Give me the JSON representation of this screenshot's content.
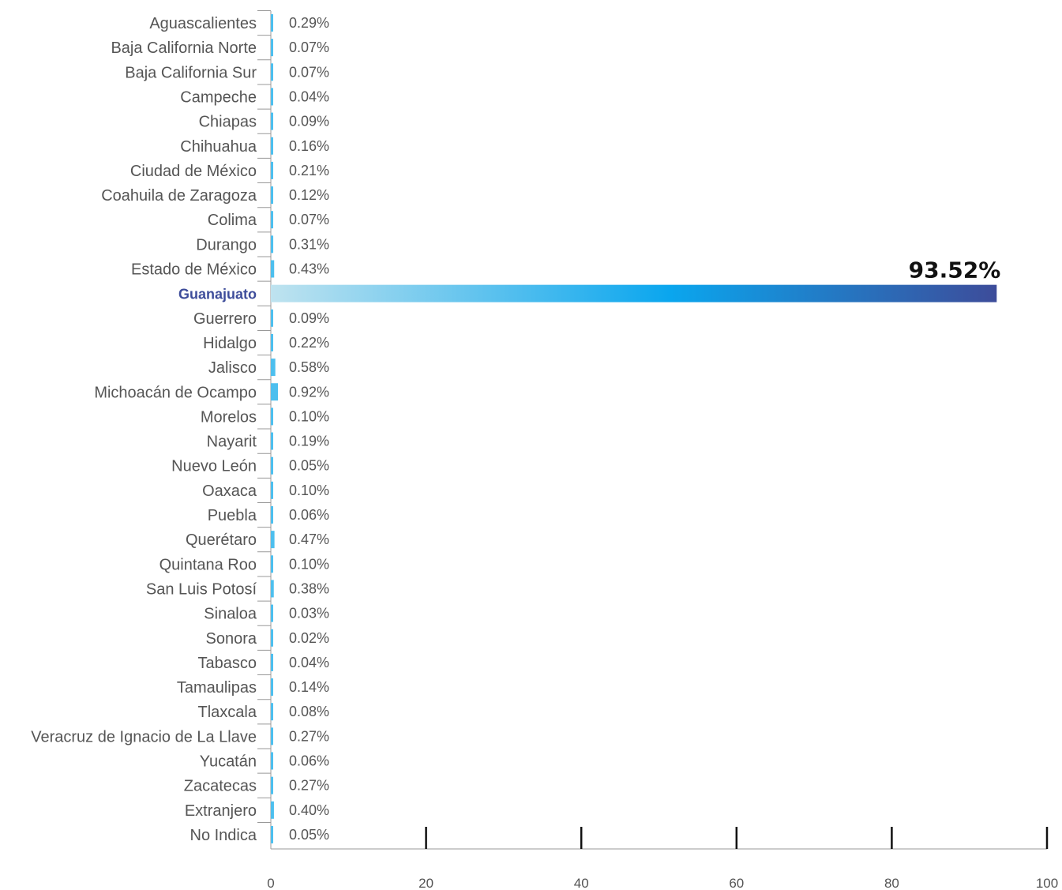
{
  "chart_data": {
    "type": "bar",
    "orientation": "horizontal",
    "title": "",
    "xlabel": "",
    "ylabel": "",
    "xlim": [
      0,
      100
    ],
    "x_ticks": [
      "0",
      "20",
      "40",
      "60",
      "80",
      "100"
    ],
    "grid": false,
    "categories": [
      "Aguascalientes",
      "Baja California Norte",
      "Baja California Sur",
      "Campeche",
      "Chiapas",
      "Chihuahua",
      "Ciudad de México",
      "Coahuila de Zaragoza",
      "Colima",
      "Durango",
      "Estado de México",
      "Guanajuato",
      "Guerrero",
      "Hidalgo",
      "Jalisco",
      "Michoacán de Ocampo",
      "Morelos",
      "Nayarit",
      "Nuevo León",
      "Oaxaca",
      "Puebla",
      "Querétaro",
      "Quintana Roo",
      "San Luis Potosí",
      "Sinaloa",
      "Sonora",
      "Tabasco",
      "Tamaulipas",
      "Tlaxcala",
      "Veracruz de Ignacio de La Llave",
      "Yucatán",
      "Zacatecas",
      "Extranjero",
      "No Indica"
    ],
    "values": [
      0.29,
      0.07,
      0.07,
      0.04,
      0.09,
      0.16,
      0.21,
      0.12,
      0.07,
      0.31,
      0.43,
      93.52,
      0.09,
      0.22,
      0.58,
      0.92,
      0.1,
      0.19,
      0.05,
      0.1,
      0.06,
      0.47,
      0.1,
      0.38,
      0.03,
      0.02,
      0.04,
      0.14,
      0.08,
      0.27,
      0.06,
      0.27,
      0.4,
      0.05
    ],
    "value_labels": [
      "0.29%",
      "0.07%",
      "0.07%",
      "0.04%",
      "0.09%",
      "0.16%",
      "0.21%",
      "0.12%",
      "0.07%",
      "0.31%",
      "0.43%",
      "93.52%",
      "0.09%",
      "0.22%",
      "0.58%",
      "0.92%",
      "0.10%",
      "0.19%",
      "0.05%",
      "0.10%",
      "0.06%",
      "0.47%",
      "0.10%",
      "0.38%",
      "0.03%",
      "0.02%",
      "0.04%",
      "0.14%",
      "0.08%",
      "0.27%",
      "0.06%",
      "0.27%",
      "0.40%",
      "0.05%"
    ],
    "highlight": "Guanajuato",
    "colors": {
      "bar": "#4dbfee",
      "highlight_start": "#bfe3ef",
      "highlight_mid": "#0aa6ee",
      "highlight_end": "#3d4c9a",
      "highlight_label": "#3d4c9a",
      "axis": "#999999",
      "tick": "#111111",
      "text": "#555555"
    }
  }
}
